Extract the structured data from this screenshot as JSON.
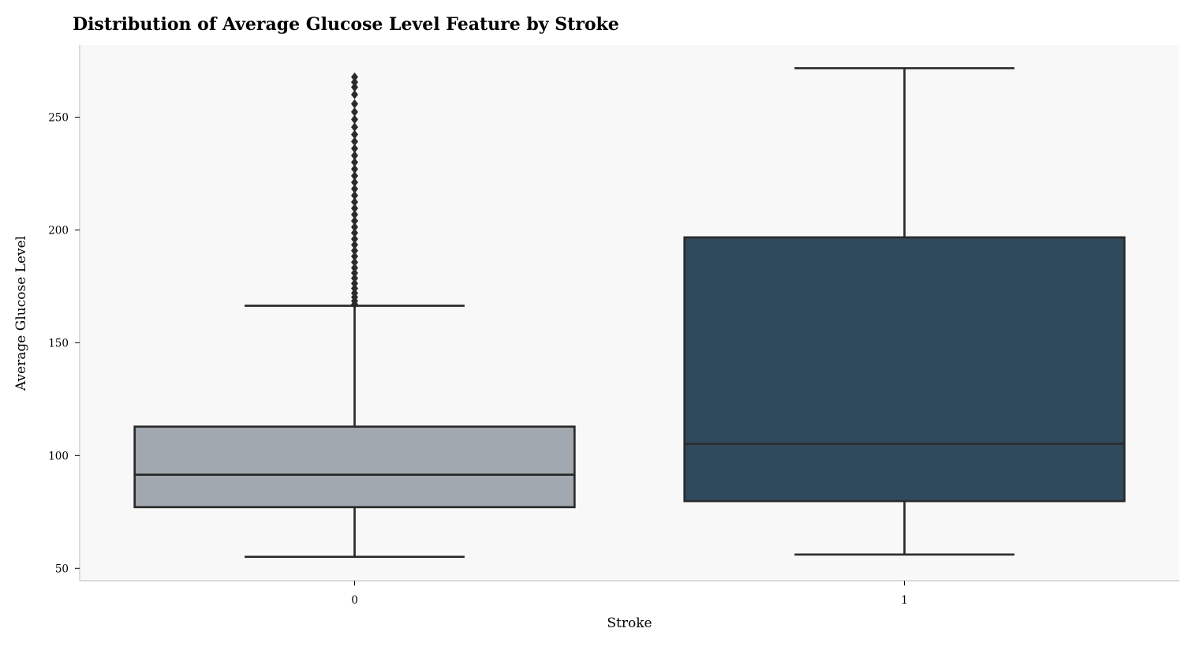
{
  "chart_data": {
    "type": "box",
    "title": "Distribution of Average Glucose Level Feature by Stroke",
    "xlabel": "Stroke",
    "ylabel": "Average Glucose Level",
    "categories": [
      "0",
      "1"
    ],
    "ylim": [
      44.5,
      282
    ],
    "yticks": [
      50,
      100,
      150,
      200,
      250
    ],
    "boxes": [
      {
        "category": "0",
        "whisker_low": 55.1,
        "q1": 77.1,
        "median": 91.5,
        "q3": 112.8,
        "whisker_high": 166.4,
        "outliers": [
          167.0,
          168.5,
          170.2,
          172.0,
          174.1,
          176.3,
          178.6,
          180.9,
          183.2,
          185.7,
          188.3,
          190.8,
          193.4,
          196.0,
          198.7,
          201.3,
          204.0,
          206.8,
          209.6,
          212.4,
          215.3,
          218.2,
          221.1,
          224.0,
          227.0,
          230.0,
          233.0,
          236.1,
          239.2,
          242.3,
          245.6,
          249.0,
          252.3,
          255.9,
          260.0,
          263.3,
          265.5,
          267.8
        ]
      },
      {
        "category": "1",
        "whisker_low": 56.1,
        "q1": 79.8,
        "median": 105.2,
        "q3": 196.7,
        "whisker_high": 271.7,
        "outliers": []
      }
    ],
    "colors": [
      "#a1a8b0",
      "#2f4a5d"
    ],
    "line_color": "#2b2b2b",
    "background": "#f8f8f8",
    "grid": false
  }
}
